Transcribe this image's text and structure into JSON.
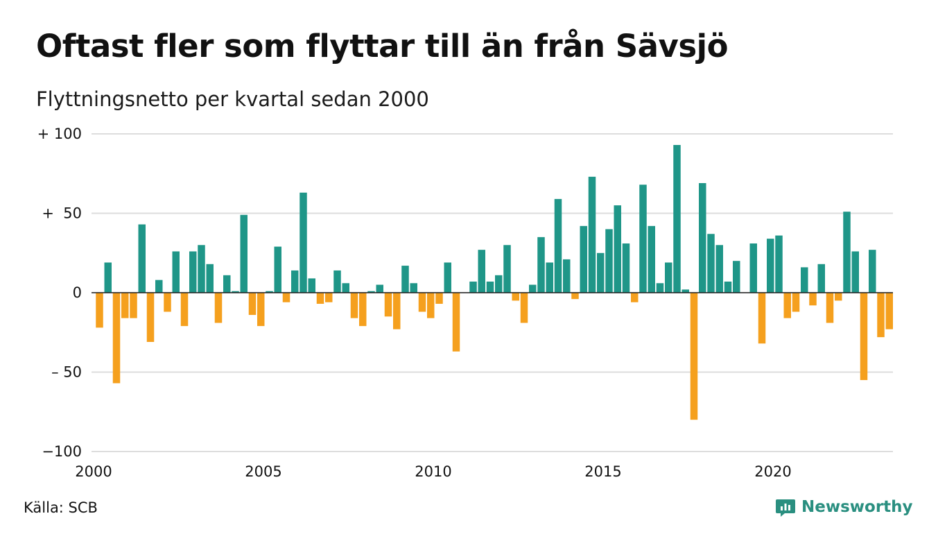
{
  "title": "Oftast fler som flyttar till än från Sävsjö",
  "subtitle": "Flyttningsnetto per kvartal sedan 2000",
  "source": "Källa: SCB",
  "brand": {
    "name": "Newsworthy",
    "icon": "newsworthy-chart-bubble-icon",
    "color": "#2a8f80"
  },
  "chart_data": {
    "type": "bar",
    "x_start_year": 2000,
    "periods_per_year": 4,
    "values": [
      -22,
      19,
      -57,
      -16,
      -16,
      43,
      -31,
      8,
      -12,
      26,
      -21,
      26,
      30,
      18,
      -19,
      11,
      1,
      49,
      -14,
      -21,
      1,
      29,
      -6,
      14,
      63,
      9,
      -7,
      -6,
      14,
      6,
      -16,
      -21,
      1,
      5,
      -15,
      -23,
      17,
      6,
      -12,
      -16,
      -7,
      19,
      -37,
      0,
      7,
      27,
      7,
      11,
      30,
      -5,
      -19,
      5,
      35,
      19,
      59,
      21,
      -4,
      42,
      73,
      25,
      40,
      55,
      31,
      -6,
      68,
      42,
      6,
      19,
      93,
      2,
      -80,
      69,
      37,
      30,
      7,
      20,
      0,
      31,
      -32,
      34,
      36,
      -16,
      -12,
      16,
      -8,
      18,
      -19,
      -5,
      51,
      26,
      -55,
      27,
      -28,
      -23
    ],
    "ylim": [
      -100,
      100
    ],
    "yticks": [
      100,
      50,
      0,
      -50,
      -100
    ],
    "ytick_labels": [
      "+ 100",
      "+  50",
      "0",
      "– 50",
      "−100"
    ],
    "xticks": [
      "2000",
      "2005",
      "2010",
      "2015",
      "2020"
    ],
    "colors": {
      "positive": "#1f9688",
      "negative": "#f5a01e",
      "grid": "#dddddd",
      "zero_line": "#222222"
    },
    "grid": true
  }
}
